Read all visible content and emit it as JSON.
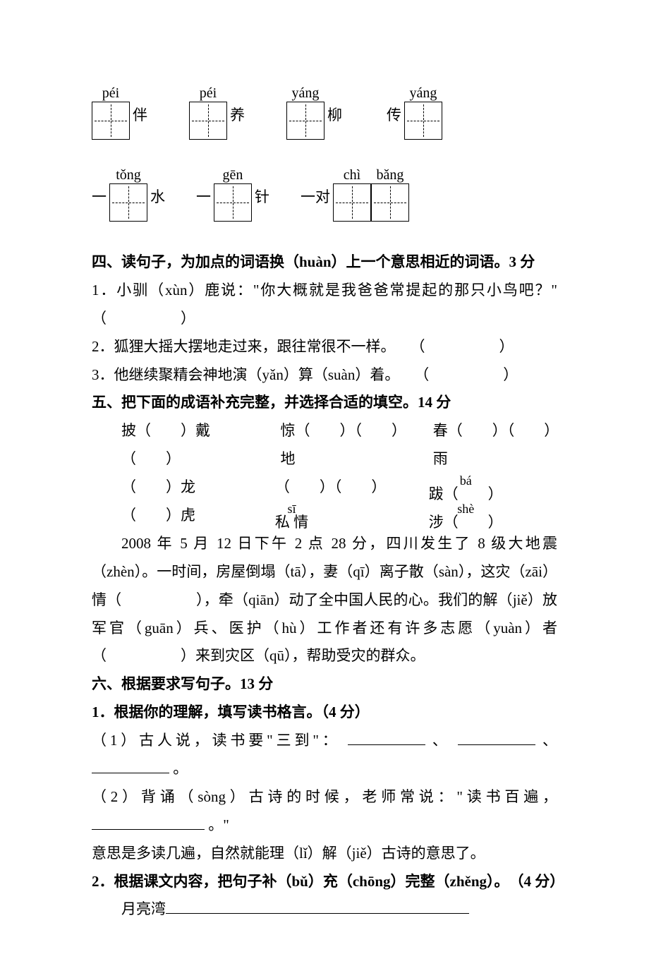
{
  "row1": {
    "b1": {
      "pinyin": "péi",
      "right": "伴"
    },
    "b2": {
      "pinyin": "péi",
      "right": "养"
    },
    "b3": {
      "pinyin": "yáng",
      "right": "柳"
    },
    "b4": {
      "pinyin": "yáng",
      "left": "传"
    }
  },
  "row2": {
    "b1": {
      "prefix": "一",
      "pinyin": "tǒng",
      "right": "水"
    },
    "b2": {
      "prefix": "一",
      "pinyin": "gēn",
      "right": "针"
    },
    "b3": {
      "prefix": "一对",
      "p1": "chì",
      "p2": "bǎng"
    }
  },
  "s4": {
    "heading": "四、读句子，为加点的词语换（huàn）上一个意思相近的词语。3 分",
    "q1": "1．小驯（xùn）鹿说：\"你大概就是我爸爸常提起的那只小鸟吧？\"　（　　　　　）",
    "q2": "2．狐狸大摇大摆地走过来，跟往常很不一样。　　（　　　　　）",
    "q3": "3．他继续聚精会神地演（yǎn）算（suàn）着。　　（　　　　　）"
  },
  "s5": {
    "heading": "五、把下面的成语补充完整，并选择合适的填空。14 分",
    "i1": "披（　　）戴（　　）",
    "i2": "惊（　　）（　　）地",
    "i3": "春（　　）（　　）雨",
    "i4": "（　　）龙（　　）虎",
    "i5a": "（　　）（　　）",
    "i5p": "sī",
    "i5b": "私 情",
    "i6p1": "bá",
    "i6a": "跋（　　）",
    "i6p2": "shè",
    "i6b": "涉（　　）",
    "para": "2008 年 5 月 12 日下午 2 点 28 分，四川发生了 8 级大地震（zhèn）。一时间，房屋倒塌（tā），妻（qī）离子散（sàn），这灾（zāi）情（　　　　　），牵（qiān）动了全中国人民的心。我们的解（jiě）放军官（guān）兵、医护（hù）工作者还有许多志愿（yuàn）者（　　　　　）来到灾区（qū），帮助受灾的群众。"
  },
  "s6": {
    "heading": "六、根据要求写句子。13 分",
    "sub1": "1．根据你的理解，填写读书格言。（4 分）",
    "q1a": "（1）古人说，读书要\"三到\"：",
    "sep": "、",
    "period": "。",
    "q2a": "（2）背诵（sòng）古诗的时候，老师常说：\"读书百遍，",
    "q2b": "。\"",
    "q2c": "意思是多读几遍，自然就能理（lǐ）解（jiě）古诗的意思了。",
    "sub2": "2．根据课文内容，把句子补（bǔ）充（chōng）完整（zhěng）。　（4 分）",
    "q3": "月亮湾"
  }
}
